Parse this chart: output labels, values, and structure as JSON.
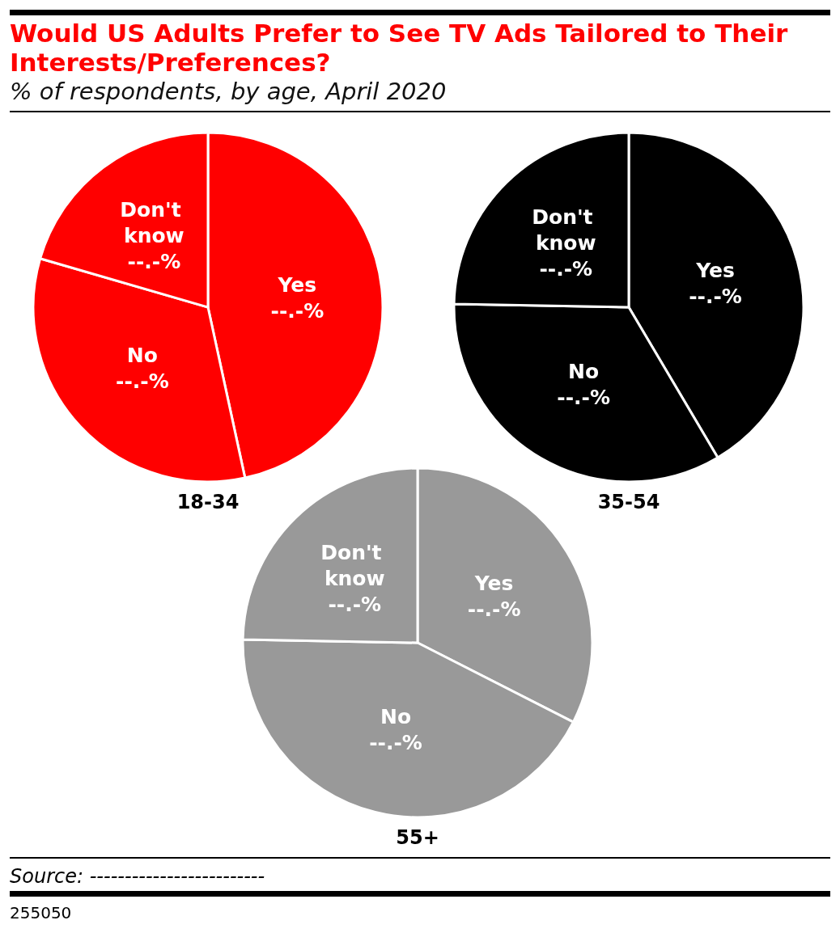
{
  "chart_data": [
    {
      "type": "pie",
      "title": "Would US Adults Prefer to See TV Ads Tailored to Their Interests/Preferences?",
      "subtitle": "% of respondents, by age, April 2020",
      "xlabel": "18-34",
      "categories": [
        "Yes",
        "No",
        "Don't know"
      ],
      "values": [
        46.6,
        32.9,
        20.5
      ],
      "colors": [
        "#ff0000",
        "#ff0000",
        "#ff0000"
      ],
      "value_labels": [
        "--.-%",
        "--.-%",
        "--.-%"
      ],
      "annotations": [
        "Source: -------------------------",
        "255050"
      ]
    },
    {
      "type": "pie",
      "xlabel": "35-54",
      "categories": [
        "Yes",
        "No",
        "Don't know"
      ],
      "values": [
        41.5,
        33.8,
        24.7
      ],
      "colors": [
        "#000000",
        "#000000",
        "#000000"
      ],
      "value_labels": [
        "--.-%",
        "--.-%",
        "--.-%"
      ]
    },
    {
      "type": "pie",
      "xlabel": "55+",
      "categories": [
        "Yes",
        "No",
        "Don't know"
      ],
      "values": [
        32.5,
        42.8,
        24.7
      ],
      "colors": [
        "#999999",
        "#999999",
        "#999999"
      ],
      "value_labels": [
        "--.-%",
        "--.-%",
        "--.-%"
      ]
    }
  ]
}
